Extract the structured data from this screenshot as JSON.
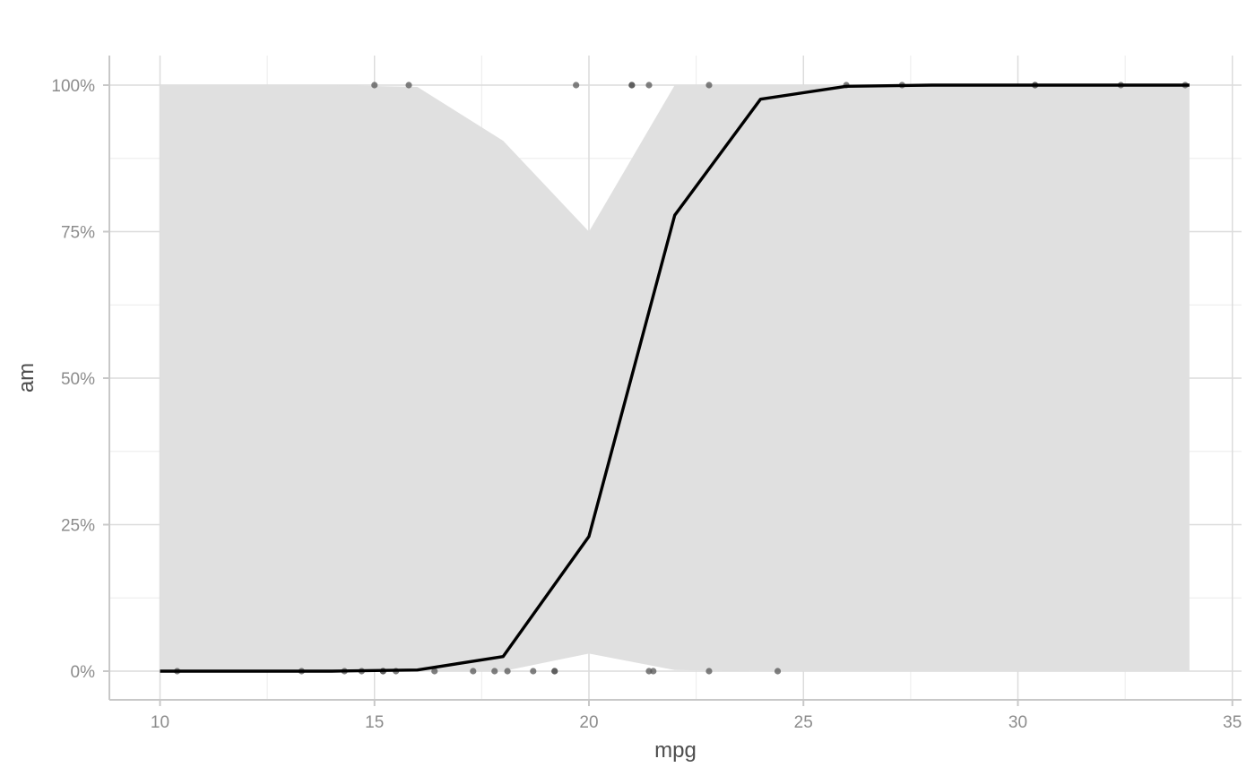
{
  "chart_data": {
    "type": "line",
    "title": "",
    "xlabel": "mpg",
    "ylabel": "am",
    "xlim": [
      8.8,
      35.2
    ],
    "ylim": [
      -0.05,
      1.05
    ],
    "x_ticks": [
      10,
      15,
      20,
      25,
      30,
      35
    ],
    "x_tick_labels": [
      "10",
      "15",
      "20",
      "25",
      "30",
      "35"
    ],
    "y_ticks": [
      0,
      0.25,
      0.5,
      0.75,
      1.0
    ],
    "y_tick_labels": [
      "0%",
      "25%",
      "50%",
      "75%",
      "100%"
    ],
    "grid": true,
    "legend": "none",
    "colors": {
      "line": "#000000",
      "ribbon": "#e0e0e0",
      "points": "#555555",
      "grid_major": "#dcdcdc",
      "grid_minor": "#ececec",
      "axis": "#c8c8c8"
    },
    "fit": {
      "x": [
        10,
        12,
        14,
        16,
        18,
        20,
        22,
        24,
        26,
        28,
        30,
        32,
        34
      ],
      "y": [
        0.0,
        0.0,
        0.0,
        0.002,
        0.025,
        0.23,
        0.778,
        0.976,
        0.998,
        1.0,
        1.0,
        1.0,
        1.0
      ]
    },
    "ribbon": {
      "x": [
        10,
        14,
        16,
        18,
        20,
        22,
        24,
        26,
        30,
        34
      ],
      "lower": [
        0.0,
        0.0,
        0.0,
        0.0,
        0.03,
        0.002,
        0.0,
        0.0,
        0.0,
        0.0
      ],
      "upper": [
        1.0,
        1.0,
        0.997,
        0.905,
        0.75,
        1.0,
        1.0,
        1.0,
        1.0,
        1.0
      ]
    },
    "points": {
      "x": [
        10.4,
        13.3,
        14.3,
        14.7,
        15.2,
        15.2,
        15.5,
        16.4,
        17.3,
        17.8,
        18.1,
        18.7,
        19.2,
        19.2,
        21.4,
        21.5,
        22.8,
        24.4,
        15.0,
        15.8,
        19.7,
        21.0,
        21.0,
        21.4,
        22.8,
        26.0,
        27.3,
        30.4,
        30.4,
        32.4,
        33.9
      ],
      "y": [
        0,
        0,
        0,
        0,
        0,
        0,
        0,
        0,
        0,
        0,
        0,
        0,
        0,
        0,
        0,
        0,
        0,
        0,
        1,
        1,
        1,
        1,
        1,
        1,
        1,
        1,
        1,
        1,
        1,
        1,
        1
      ]
    }
  }
}
